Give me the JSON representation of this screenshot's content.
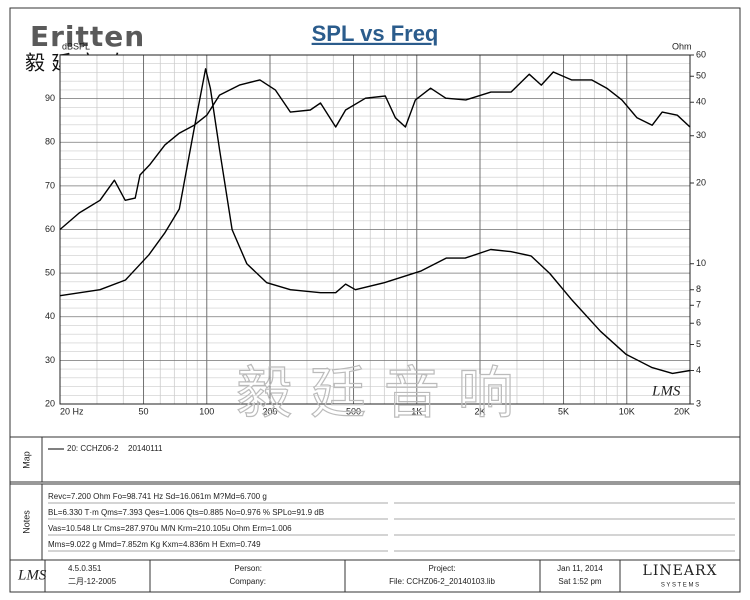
{
  "chart_data": {
    "type": "line",
    "title": "SPL vs Freq",
    "y_label": "dBSPL",
    "y2_label": "Ohm",
    "xlim": [
      20,
      20000
    ],
    "xticks": [
      {
        "value": 20,
        "label": "20 Hz"
      },
      50,
      100,
      200,
      500,
      {
        "value": 1000,
        "label": "1K"
      },
      {
        "value": 2000,
        "label": "2K"
      },
      {
        "value": 5000,
        "label": "5K"
      },
      {
        "value": 10000,
        "label": "10K"
      },
      {
        "value": 20000,
        "label": "20K"
      }
    ],
    "xscale": "log",
    "ylim": [
      20,
      100
    ],
    "yticks": [
      20,
      30,
      40,
      50,
      60,
      70,
      80,
      90
    ],
    "y2lim": [
      3,
      60
    ],
    "y2ticks": [
      3,
      4,
      5,
      6,
      7,
      8,
      10,
      20,
      30,
      40,
      50,
      60
    ],
    "y2scale": "log",
    "grid": true,
    "series": [
      {
        "color": "#000000",
        "x": [
          20,
          24.7,
          31,
          36.3,
          40.9,
          45.6,
          48.1,
          53.4,
          63.2,
          74.1,
          87.1,
          100,
          115,
          143,
          179,
          212,
          250,
          311,
          348,
          411,
          458,
          570,
          708,
          791,
          883,
          985,
          1164,
          1375,
          1711,
          2255,
          2810,
          3431,
          3915,
          4468,
          5454,
          6800,
          8030,
          9480,
          11190,
          13210,
          14750,
          17400,
          20000
        ],
        "values": [
          60,
          63.8,
          66.7,
          71.3,
          66.7,
          67.2,
          72.5,
          74.8,
          79.4,
          82.1,
          83.9,
          86.2,
          90.8,
          93.1,
          94.3,
          92,
          86.9,
          87.4,
          89,
          83.5,
          87.4,
          90.1,
          90.6,
          85.6,
          83.5,
          89.7,
          92.4,
          90.1,
          89.7,
          91.5,
          91.5,
          95.6,
          93.1,
          96.1,
          94.3,
          94.3,
          92.4,
          89.7,
          85.6,
          83.9,
          86.9,
          86.2,
          83.5
        ]
      },
      {
        "color": "#000000",
        "axis": "y2",
        "x": [
          20,
          31,
          41,
          53,
          63,
          74,
          87,
          98.7,
          104,
          115,
          132,
          155,
          193,
          250,
          348,
          411,
          458,
          510,
          700,
          1050,
          1380,
          1700,
          2250,
          2800,
          3500,
          4300,
          5500,
          7500,
          9900,
          13200,
          16500,
          20000
        ],
        "values": [
          7.6,
          8.0,
          8.7,
          10.8,
          13,
          16,
          31.8,
          53.3,
          45,
          26.7,
          13.4,
          10,
          8.5,
          8.0,
          7.8,
          7.8,
          8.4,
          8.0,
          8.5,
          9.4,
          10.5,
          10.5,
          11.3,
          11.1,
          10.7,
          9.2,
          7.3,
          5.6,
          4.6,
          4.1,
          3.9,
          4.0
        ]
      }
    ]
  },
  "logo": {
    "brand": "Eritten",
    "chinese": "毅 廷 音 响"
  },
  "watermark": "毅 廷 音 响",
  "plot_mark": "LMS",
  "map": {
    "heading": "Map",
    "legend_label": "20: CCHZ06-2",
    "legend_date": "20140111"
  },
  "notes": {
    "heading": "Notes",
    "lines": [
      "Revc=7.200 Ohm  Fo=98.741 Hz  Sd=16.061m M?Md=6.700 g",
      "BL=6.330 T·m  Qms=7.393  Qes=1.006  Qts=0.885  No=0.976 %  SPLo=91.9 dB",
      "Vas=10.548 Ltr  Cms=287.970u M/N  Krm=210.105u Ohm  Erm=1.006",
      "Mms=9.022 g  Mmd=7.852m Kg  Kxm=4.836m H  Exm=0.749"
    ]
  },
  "footer": {
    "app": "LMS",
    "version": "4.5.0.351",
    "build_date": "二月-12-2005",
    "person": "Person:",
    "company": "Company:",
    "project": "Project:",
    "file": "File: CCHZ06-2_20140103.lib",
    "date": "Jan 11, 2014",
    "time": "Sat  1:52 pm",
    "vendor": "LINEARX",
    "vendor_sub": "S Y S T E M S"
  }
}
